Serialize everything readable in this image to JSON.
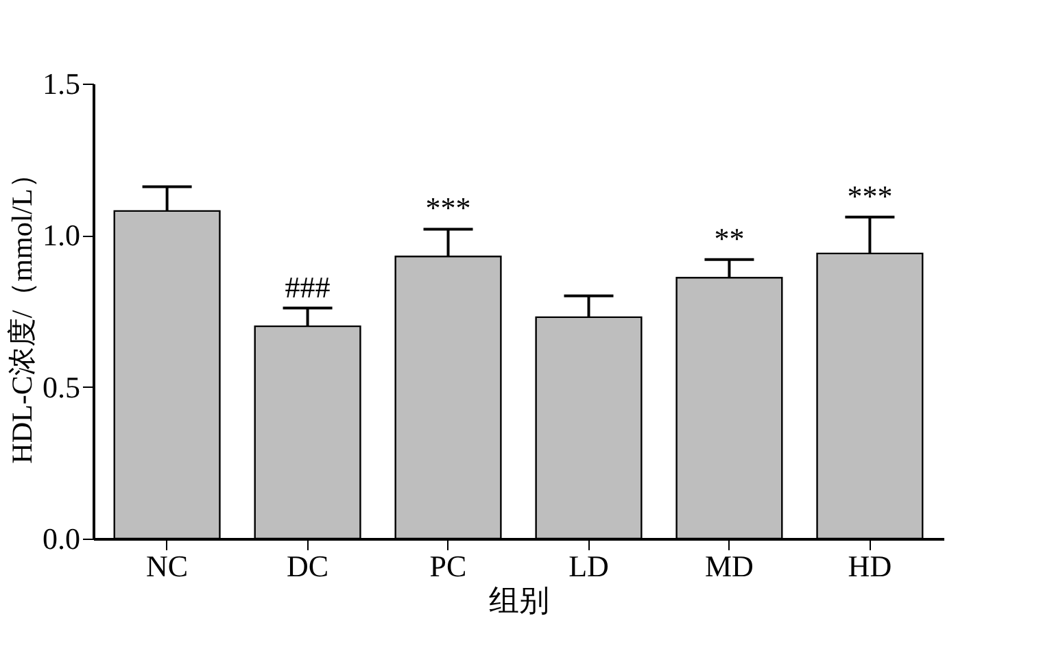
{
  "chart_data": {
    "type": "bar",
    "xlabel": "组别",
    "ylabel": "HDL-C浓度/（mmol/L）",
    "categories": [
      "NC",
      "DC",
      "PC",
      "LD",
      "MD",
      "HD"
    ],
    "series": [
      {
        "color": "#bebebe",
        "values": [
          1.08,
          0.7,
          0.93,
          0.73,
          0.86,
          0.94
        ],
        "errors": [
          [
            1.08,
            1.16
          ],
          [
            0.7,
            0.76
          ],
          [
            0.93,
            1.02
          ],
          [
            0.73,
            0.8
          ],
          [
            0.86,
            0.92
          ],
          [
            0.94,
            1.06
          ]
        ]
      }
    ],
    "ylim": [
      0,
      1.5
    ],
    "yticks": [
      {
        "value": 0,
        "label": "0.0"
      },
      {
        "value": 0.5,
        "label": "0.5"
      },
      {
        "value": 1,
        "label": "1.0"
      },
      {
        "value": 1.5,
        "label": "1.5"
      }
    ],
    "annotations": [
      {
        "text": "###",
        "x": "DC",
        "y": 0.76
      },
      {
        "text": "***",
        "x": "PC",
        "y": 1.02
      },
      {
        "text": "**",
        "x": "MD",
        "y": 0.92
      },
      {
        "text": "***",
        "x": "HD",
        "y": 1.06
      }
    ],
    "grid": false
  }
}
